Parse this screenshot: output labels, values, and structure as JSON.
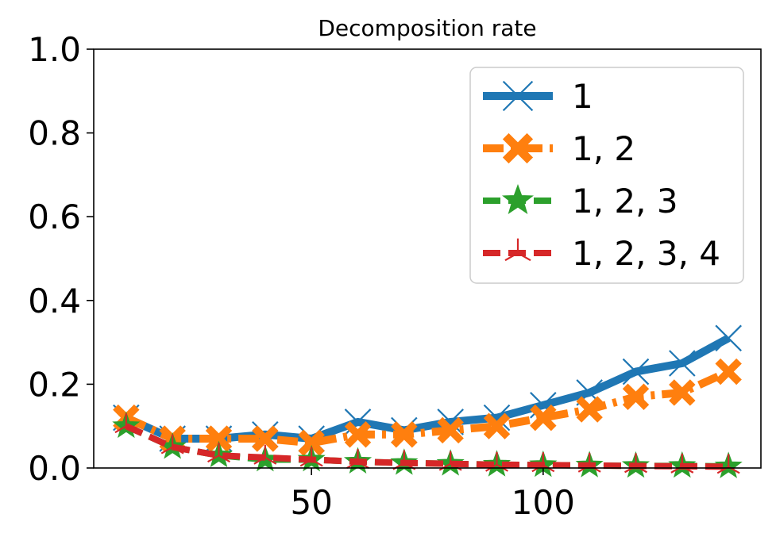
{
  "chart_data": {
    "type": "line",
    "title": "Decomposition rate",
    "xlabel": "",
    "ylabel": "",
    "xlim": [
      3,
      147
    ],
    "ylim": [
      0.0,
      1.0
    ],
    "x_ticks": [
      50,
      100
    ],
    "x_tick_labels": [
      "50",
      "100"
    ],
    "y_ticks": [
      0.0,
      0.2,
      0.4,
      0.6,
      0.8,
      1.0
    ],
    "y_tick_labels": [
      "0.0",
      "0.2",
      "0.4",
      "0.6",
      "0.8",
      "1.0"
    ],
    "grid": false,
    "legend_position": "upper-right",
    "x": [
      10,
      20,
      30,
      40,
      50,
      60,
      70,
      80,
      90,
      100,
      110,
      120,
      130,
      140
    ],
    "series": [
      {
        "name": "1",
        "color": "#1f77b4",
        "marker": "x",
        "linestyle": "solid",
        "values": [
          0.12,
          0.07,
          0.07,
          0.08,
          0.07,
          0.11,
          0.09,
          0.11,
          0.12,
          0.15,
          0.18,
          0.23,
          0.25,
          0.31
        ]
      },
      {
        "name": "1, 2",
        "color": "#ff7f0e",
        "marker": "X",
        "linestyle": "dashdot",
        "values": [
          0.12,
          0.07,
          0.07,
          0.07,
          0.06,
          0.08,
          0.08,
          0.09,
          0.1,
          0.12,
          0.14,
          0.17,
          0.18,
          0.23
        ]
      },
      {
        "name": "1, 2, 3",
        "color": "#2ca02c",
        "marker": "star",
        "linestyle": "dashed",
        "values": [
          0.1,
          0.05,
          0.03,
          0.02,
          0.02,
          0.015,
          0.012,
          0.01,
          0.008,
          0.007,
          0.006,
          0.005,
          0.005,
          0.004
        ]
      },
      {
        "name": "1, 2, 3, 4",
        "color": "#d62728",
        "marker": "tri",
        "linestyle": "dashed",
        "values": [
          0.1,
          0.05,
          0.03,
          0.025,
          0.02,
          0.015,
          0.012,
          0.01,
          0.008,
          0.007,
          0.006,
          0.005,
          0.004,
          0.003
        ]
      }
    ]
  }
}
